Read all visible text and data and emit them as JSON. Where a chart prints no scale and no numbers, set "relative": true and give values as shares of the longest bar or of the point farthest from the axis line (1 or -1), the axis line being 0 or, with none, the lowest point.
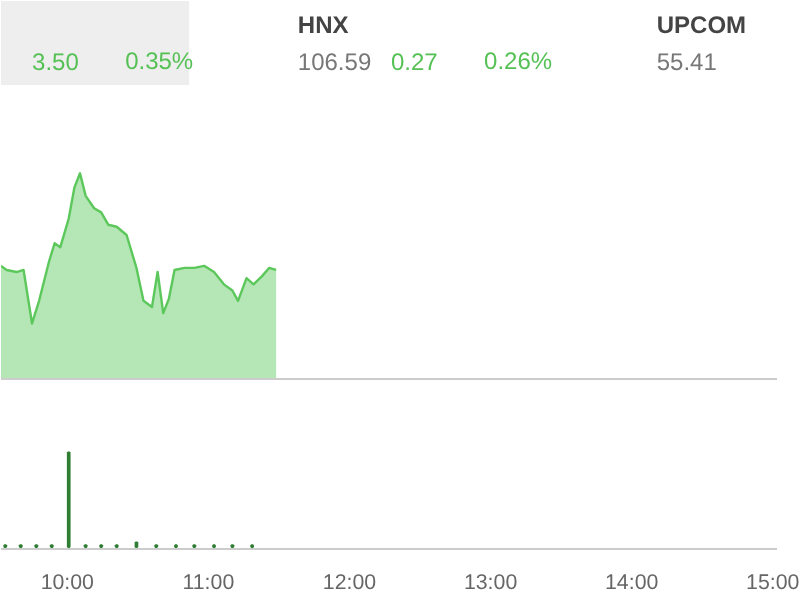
{
  "chart_data": [
    {
      "type": "area",
      "relative": true,
      "tick_labels": false,
      "xlim": [
        9.53,
        15.03
      ],
      "annotations": [
        "3.50",
        "0.35%",
        "HNX",
        "106.59",
        "0.27",
        "0.26%",
        "UPCOM",
        "55.41"
      ],
      "series": [
        {
          "color": "#5cc85c",
          "x": [
            9.53,
            9.57,
            9.64,
            9.69,
            9.75,
            9.8,
            9.87,
            9.91,
            9.95,
            10.01,
            10.05,
            10.09,
            10.13,
            10.19,
            10.24,
            10.29,
            10.35,
            10.42,
            10.49,
            10.54,
            10.6,
            10.64,
            10.68,
            10.72,
            10.76,
            10.83,
            10.9,
            10.97,
            11.04,
            11.11,
            11.17,
            11.21,
            11.27,
            11.32,
            11.38,
            11.43,
            11.48
          ],
          "values": [
            0.55,
            0.53,
            0.52,
            0.53,
            0.27,
            0.38,
            0.57,
            0.66,
            0.64,
            0.78,
            0.93,
            1.0,
            0.89,
            0.83,
            0.81,
            0.75,
            0.74,
            0.7,
            0.54,
            0.38,
            0.35,
            0.52,
            0.32,
            0.39,
            0.53,
            0.54,
            0.54,
            0.55,
            0.52,
            0.46,
            0.43,
            0.38,
            0.49,
            0.46,
            0.5,
            0.54,
            0.53
          ]
        }
      ]
    },
    {
      "type": "bar",
      "relative": true,
      "tick_labels": "x",
      "xlim": [
        9.53,
        15.03
      ],
      "xticks": [
        {
          "value": 10,
          "label": "10:00"
        },
        {
          "value": 11,
          "label": "11:00"
        },
        {
          "value": 12,
          "label": "12:00"
        },
        {
          "value": 13,
          "label": "13:00"
        },
        {
          "value": 14,
          "label": "14:00"
        },
        {
          "value": 15,
          "label": "15:00"
        }
      ],
      "series": [
        {
          "color": "#2e7d32",
          "x": [
            9.56,
            9.67,
            9.78,
            9.89,
            10.01,
            10.13,
            10.24,
            10.35,
            10.49,
            10.63,
            10.77,
            10.9,
            11.04,
            11.17,
            11.31
          ],
          "values": [
            0.02,
            0.02,
            0.02,
            0.02,
            1.0,
            0.02,
            0.02,
            0.02,
            0.05,
            0.02,
            0.02,
            0.02,
            0.02,
            0.02,
            0.02
          ]
        }
      ]
    }
  ]
}
